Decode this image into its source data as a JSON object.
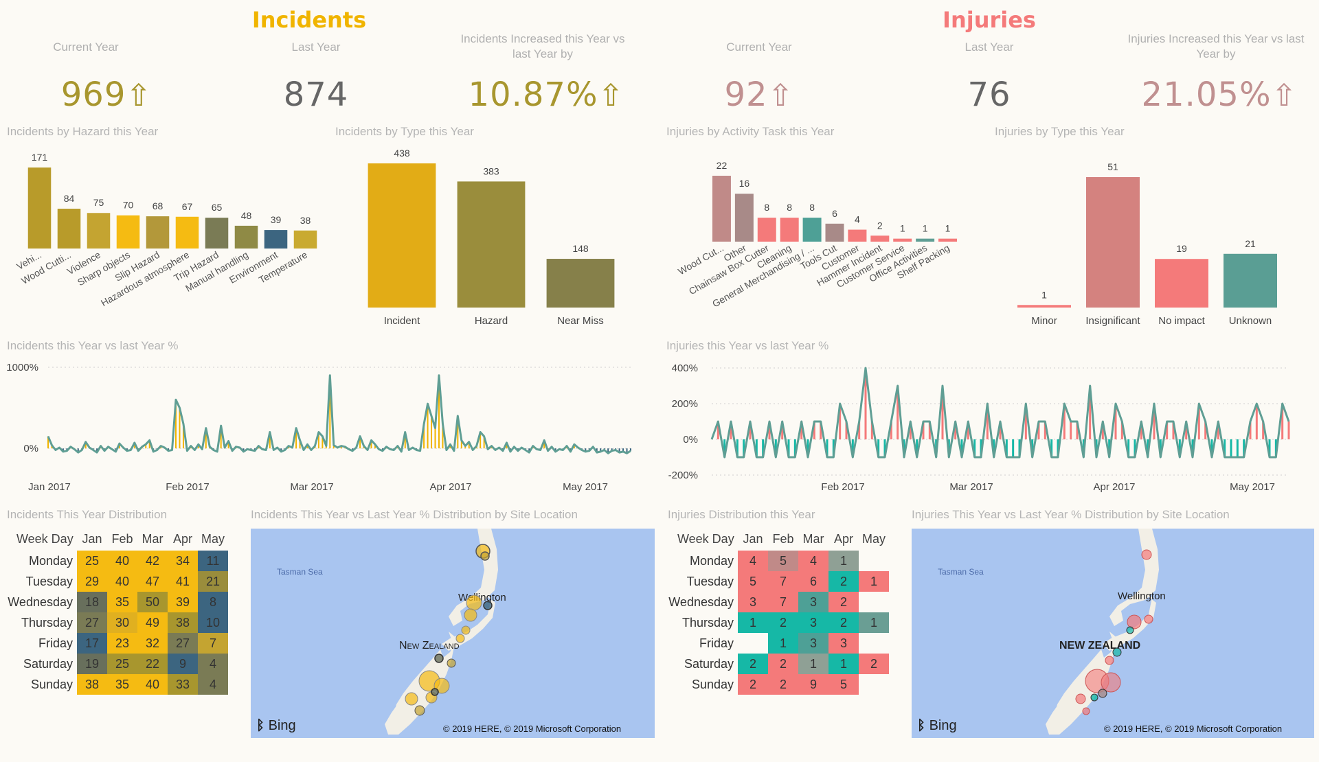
{
  "incidents": {
    "title": "Incidents",
    "title_color": "#f0b400",
    "kpis": [
      {
        "label": "Current Year",
        "value": "969",
        "arrow": "⇧",
        "color": "#a8962e"
      },
      {
        "label": "Last Year",
        "value": "874",
        "arrow": "",
        "color": "#666666"
      },
      {
        "label": "Incidents Increased this Year vs last Year by",
        "value": "10.87%",
        "arrow": "⇧",
        "color": "#a8962e"
      }
    ]
  },
  "injuries": {
    "title": "Injuries",
    "title_color": "#f47a7a",
    "kpis": [
      {
        "label": "Current Year",
        "value": "92",
        "arrow": "⇧",
        "color": "#c09090"
      },
      {
        "label": "Last Year",
        "value": "76",
        "arrow": "",
        "color": "#666666"
      },
      {
        "label": "Injuries Increased this Year vs last Year by",
        "value": "21.05%",
        "arrow": "⇧",
        "color": "#c09090"
      }
    ]
  },
  "chart_data": [
    {
      "id": "hazard",
      "type": "bar",
      "title": "Incidents by Hazard this Year",
      "categories": [
        "Vehi...",
        "Wood Cutti...",
        "Violence",
        "Sharp objects",
        "Slip Hazard",
        "Hazardous atmosphere",
        "Trip Hazard",
        "Manual handling",
        "Environment",
        "Temperature"
      ],
      "values": [
        171,
        84,
        75,
        70,
        68,
        67,
        65,
        48,
        39,
        38
      ],
      "colors": [
        "#b89b2a",
        "#b89b2a",
        "#c4a431",
        "#f5bb12",
        "#b3983a",
        "#f5bb12",
        "#7a7b55",
        "#8f8a45",
        "#3c6580",
        "#c9aa30"
      ]
    },
    {
      "id": "inctype",
      "type": "bar",
      "title": "Incidents by Type this Year",
      "categories": [
        "Incident",
        "Hazard",
        "Near Miss"
      ],
      "values": [
        438,
        383,
        148
      ],
      "colors": [
        "#e2ac16",
        "#9a8d3c",
        "#86804a"
      ]
    },
    {
      "id": "activity",
      "type": "bar",
      "title": "Injuries by Activity Task this Year",
      "categories": [
        "Wood Cut...",
        "Other",
        "Chainsaw Box Cutter",
        "Cleaning",
        "General Merchandising / ...",
        "Tools Cut",
        "Customer",
        "Hammer Incident",
        "Customer Service",
        "Office Activities",
        "Shelf Packing"
      ],
      "values": [
        22,
        16,
        8,
        8,
        8,
        6,
        4,
        2,
        1,
        1,
        1
      ],
      "colors": [
        "#c08a88",
        "#a88a88",
        "#f47a7a",
        "#f47a7a",
        "#4ea096",
        "#a88a88",
        "#f47a7a",
        "#f47a7a",
        "#f47a7a",
        "#5f9e94",
        "#f47a7a"
      ]
    },
    {
      "id": "injtype",
      "type": "bar",
      "title": "Injuries by Type this Year",
      "categories": [
        "Minor",
        "Insignificant",
        "No impact",
        "Unknown"
      ],
      "values": [
        1,
        51,
        19,
        21
      ],
      "colors": [
        "#f47a7a",
        "#d4827f",
        "#f47a7a",
        "#5a9e94"
      ]
    },
    {
      "id": "incline",
      "type": "line",
      "title": "Incidents this Year vs last Year %",
      "y_ticks": [
        "1000%",
        "0%"
      ],
      "x_ticks": [
        "Jan 2017",
        "Feb 2017",
        "Mar 2017",
        "Apr 2017",
        "May 2017"
      ],
      "ylim": [
        -100,
        1000
      ],
      "values": [
        150,
        40,
        -20,
        10,
        -40,
        -30,
        20,
        -10,
        -50,
        -20,
        80,
        10,
        -20,
        -50,
        30,
        -30,
        20,
        -10,
        -40,
        60,
        10,
        -30,
        -20,
        70,
        -30,
        20,
        50,
        100,
        -40,
        -20,
        30,
        10,
        -30,
        -20,
        600,
        500,
        300,
        -30,
        30,
        -20,
        50,
        -10,
        250,
        20,
        -20,
        -40,
        280,
        10,
        90,
        -30,
        20,
        10,
        -40,
        -10,
        -20,
        -30,
        30,
        -10,
        -20,
        200,
        -20,
        10,
        -40,
        -20,
        30,
        10,
        250,
        100,
        -20,
        50,
        -20,
        30,
        200,
        150,
        30,
        900,
        40,
        10,
        30,
        20,
        -10,
        -30,
        10,
        150,
        30,
        -20,
        100,
        50,
        -10,
        -30,
        20,
        -10,
        -20,
        30,
        -40,
        200,
        -20,
        10,
        -20,
        -30,
        300,
        550,
        400,
        250,
        900,
        300,
        -20,
        50,
        -30,
        400,
        100,
        30,
        80,
        -20,
        30,
        200,
        150,
        -10,
        30,
        -20,
        10,
        -30,
        70,
        -40,
        20,
        -30,
        10,
        -20,
        -50,
        30,
        -10,
        -20,
        100,
        -30,
        20,
        -40,
        -10,
        -20,
        30,
        -40,
        50,
        10,
        -20,
        -40,
        -30,
        20,
        -50,
        -40,
        -20,
        -60,
        -30,
        -20,
        -50,
        -40,
        -60,
        -30
      ],
      "pos_color": "#f0b400",
      "neg_color": "#3c6580",
      "line_color": "#5f9e94"
    },
    {
      "id": "injline",
      "type": "line",
      "title": "Injuries this Year vs last Year %",
      "y_ticks": [
        "400%",
        "200%",
        "0%",
        "-200%"
      ],
      "x_ticks": [
        "Feb 2017",
        "Mar 2017",
        "Apr 2017",
        "May 2017"
      ],
      "ylim": [
        -200,
        400
      ],
      "values": [
        0,
        100,
        -100,
        100,
        -100,
        -100,
        100,
        -100,
        -100,
        100,
        -100,
        100,
        -100,
        -100,
        100,
        -100,
        100,
        100,
        -100,
        -100,
        200,
        100,
        -100,
        100,
        400,
        100,
        -100,
        -100,
        100,
        300,
        -100,
        100,
        -100,
        100,
        100,
        -100,
        300,
        -100,
        100,
        -100,
        100,
        -100,
        -100,
        200,
        -100,
        100,
        -100,
        -100,
        -100,
        200,
        -100,
        100,
        100,
        -100,
        -100,
        200,
        100,
        100,
        -100,
        300,
        -100,
        100,
        -100,
        200,
        100,
        -100,
        -100,
        100,
        -100,
        200,
        -100,
        100,
        100,
        -100,
        100,
        -100,
        200,
        100,
        -100,
        100,
        -100,
        -100,
        -100,
        -100,
        100,
        200,
        100,
        -100,
        -100,
        200,
        100
      ],
      "pos_color": "#f47a7a",
      "neg_color": "#16b8a6",
      "line_color": "#5f9e94"
    },
    {
      "id": "inc_heatmap",
      "type": "heatmap",
      "title": "Incidents This Year Distribution",
      "row_header": "Week Day",
      "columns": [
        "Jan",
        "Feb",
        "Mar",
        "Apr",
        "May"
      ],
      "rows": [
        {
          "day": "Monday",
          "values": [
            25,
            40,
            42,
            34,
            11
          ],
          "colors": [
            "#f5bb12",
            "#f5bb12",
            "#f5bb12",
            "#f5bb12",
            "#3c6580"
          ]
        },
        {
          "day": "Tuesday",
          "values": [
            29,
            40,
            47,
            41,
            21
          ],
          "colors": [
            "#f5bb12",
            "#f5bb12",
            "#f5bb12",
            "#f5bb12",
            "#9a8d3c"
          ]
        },
        {
          "day": "Wednesday",
          "values": [
            18,
            35,
            50,
            39,
            8
          ],
          "colors": [
            "#686f5c",
            "#f5bb12",
            "#a8962e",
            "#f5bb12",
            "#3c6580"
          ]
        },
        {
          "day": "Thursday",
          "values": [
            27,
            30,
            49,
            38,
            10
          ],
          "colors": [
            "#7a7b55",
            "#e0b020",
            "#f5bb12",
            "#a8962e",
            "#3c6580"
          ]
        },
        {
          "day": "Friday",
          "values": [
            17,
            23,
            32,
            27,
            7
          ],
          "colors": [
            "#3c6580",
            "#f5bb12",
            "#f5bb12",
            "#7a7b55",
            "#c4a431"
          ]
        },
        {
          "day": "Saturday",
          "values": [
            19,
            25,
            22,
            9,
            4
          ],
          "colors": [
            "#686f5c",
            "#a8962e",
            "#a8962e",
            "#3c6580",
            "#7a7b55"
          ]
        },
        {
          "day": "Sunday",
          "values": [
            38,
            35,
            40,
            33,
            4
          ],
          "colors": [
            "#f5bb12",
            "#f5bb12",
            "#f5bb12",
            "#a8962e",
            "#7a7b55"
          ]
        }
      ]
    },
    {
      "id": "inj_heatmap",
      "type": "heatmap",
      "title": "Injuries Distribution this Year",
      "row_header": "Week Day",
      "columns": [
        "Jan",
        "Feb",
        "Mar",
        "Apr",
        "May"
      ],
      "rows": [
        {
          "day": "Monday",
          "values": [
            4,
            5,
            4,
            1,
            ""
          ],
          "colors": [
            "#f47a7a",
            "#c08a88",
            "#f47a7a",
            "#8fa095",
            ""
          ]
        },
        {
          "day": "Tuesday",
          "values": [
            5,
            7,
            6,
            2,
            1
          ],
          "colors": [
            "#f47a7a",
            "#f47a7a",
            "#f47a7a",
            "#16b8a6",
            "#f47a7a"
          ]
        },
        {
          "day": "Wednesday",
          "values": [
            3,
            7,
            3,
            2,
            ""
          ],
          "colors": [
            "#f47a7a",
            "#f47a7a",
            "#4ea096",
            "#f47a7a",
            ""
          ]
        },
        {
          "day": "Thursday",
          "values": [
            1,
            2,
            3,
            2,
            1
          ],
          "colors": [
            "#16b8a6",
            "#16b8a6",
            "#16b8a6",
            "#16b8a6",
            "#6a9e94"
          ]
        },
        {
          "day": "Friday",
          "values": [
            "",
            1,
            3,
            3,
            ""
          ],
          "colors": [
            "",
            "#16b8a6",
            "#4ea096",
            "#f47a7a",
            ""
          ]
        },
        {
          "day": "Saturday",
          "values": [
            2,
            2,
            1,
            1,
            2
          ],
          "colors": [
            "#16b8a6",
            "#f47a7a",
            "#8fa095",
            "#16b8a6",
            "#f47a7a"
          ]
        },
        {
          "day": "Sunday",
          "values": [
            2,
            2,
            9,
            5,
            ""
          ],
          "colors": [
            "#f47a7a",
            "#f47a7a",
            "#f47a7a",
            "#f47a7a",
            ""
          ]
        }
      ]
    }
  ],
  "maps": {
    "incidents": {
      "title": "Incidents This Year vs Last Year % Distribution by Site Location",
      "sea_label": "Tasman Sea",
      "city": "Wellington",
      "country": "New Zealand",
      "bing": "Bing",
      "copyright": "© 2019 HERE, © 2019 Microsoft Corporation"
    },
    "injuries": {
      "title": "Injuries This Year vs Last Year % Distribution by Site Location",
      "sea_label": "Tasman Sea",
      "city": "Wellington",
      "country": "NEW ZEALAND",
      "bing": "Bing",
      "copyright": "© 2019 HERE, © 2019 Microsoft Corporation"
    }
  }
}
